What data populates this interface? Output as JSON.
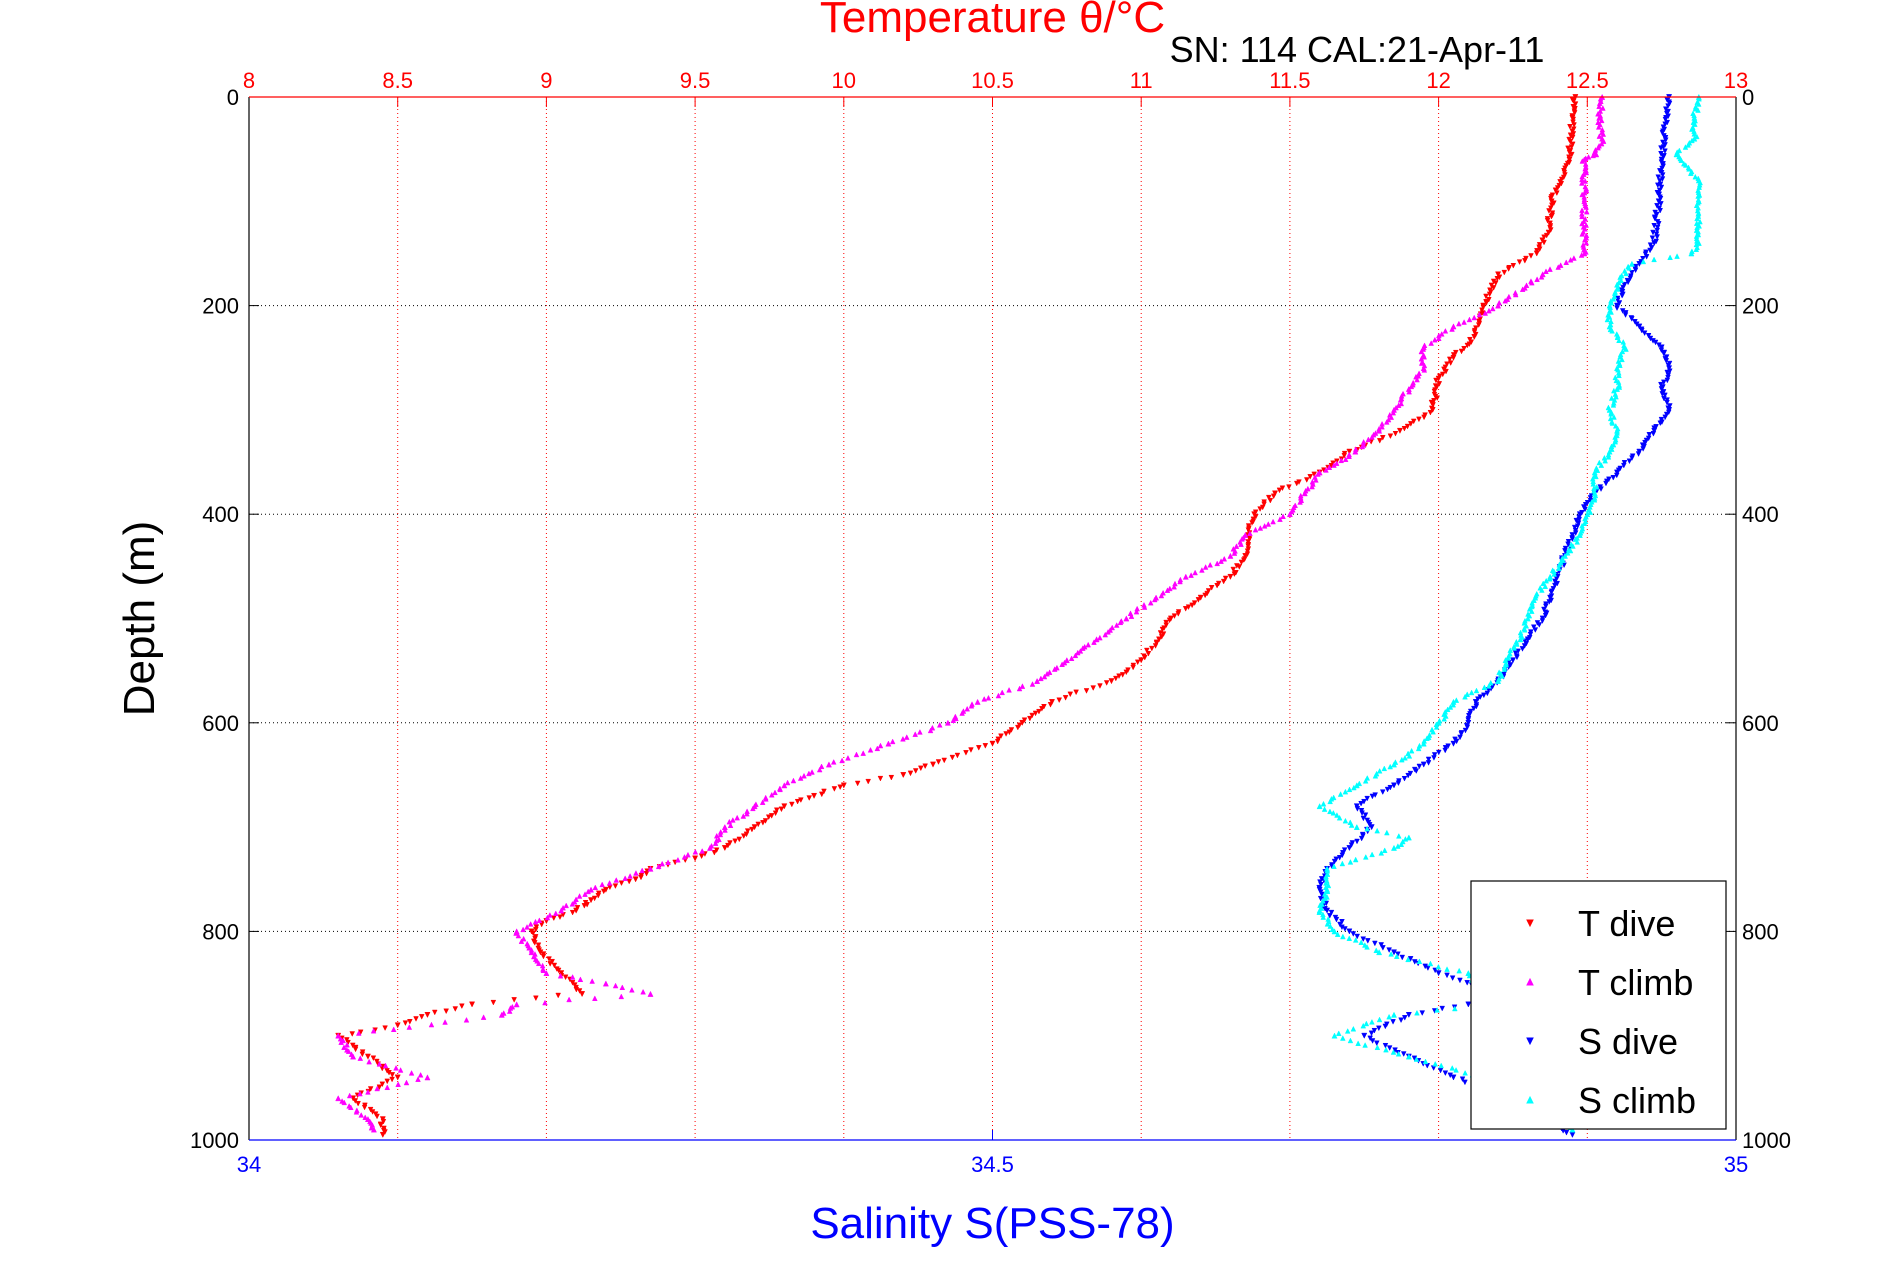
{
  "chart_data": {
    "type": "scatter",
    "title": "Temperature θ/°C",
    "subtitle": "SN: 114  CAL:21-Apr-11",
    "ylabel": "Depth (m)",
    "xlabel": "Salinity S(PSS-78)",
    "y_axis": {
      "lim": [
        0,
        1000
      ],
      "reversed": true,
      "ticks": [
        "0",
        "200",
        "400",
        "600",
        "800",
        "1000"
      ]
    },
    "x_top_axis": {
      "quantity": "Temperature",
      "lim": [
        8,
        13
      ],
      "ticks": [
        "8",
        "8.5",
        "9",
        "9.5",
        "10",
        "10.5",
        "11",
        "11.5",
        "12",
        "12.5",
        "13"
      ],
      "color": "#ff0000",
      "grid": true
    },
    "x_bottom_axis": {
      "quantity": "Salinity",
      "lim": [
        34,
        35
      ],
      "ticks": [
        "34",
        "34.5",
        "35"
      ],
      "color": "#0000ff"
    },
    "y_grid": true,
    "legend": {
      "placement": "bottom-right"
    },
    "series": [
      {
        "name": "T dive",
        "axis": "top",
        "color": "#ff0000",
        "marker": "triangle-down",
        "points": [
          [
            0,
            12.46
          ],
          [
            20,
            12.45
          ],
          [
            60,
            12.44
          ],
          [
            100,
            12.38
          ],
          [
            130,
            12.37
          ],
          [
            150,
            12.33
          ],
          [
            170,
            12.2
          ],
          [
            200,
            12.15
          ],
          [
            230,
            12.12
          ],
          [
            250,
            12.05
          ],
          [
            270,
            12.0
          ],
          [
            300,
            11.98
          ],
          [
            320,
            11.87
          ],
          [
            340,
            11.7
          ],
          [
            360,
            11.6
          ],
          [
            380,
            11.45
          ],
          [
            400,
            11.38
          ],
          [
            420,
            11.36
          ],
          [
            440,
            11.35
          ],
          [
            460,
            11.3
          ],
          [
            480,
            11.2
          ],
          [
            500,
            11.1
          ],
          [
            520,
            11.06
          ],
          [
            540,
            11.0
          ],
          [
            560,
            10.9
          ],
          [
            580,
            10.7
          ],
          [
            600,
            10.6
          ],
          [
            620,
            10.5
          ],
          [
            640,
            10.3
          ],
          [
            650,
            10.2
          ],
          [
            660,
            10.0
          ],
          [
            670,
            9.9
          ],
          [
            680,
            9.8
          ],
          [
            700,
            9.7
          ],
          [
            720,
            9.6
          ],
          [
            730,
            9.5
          ],
          [
            740,
            9.35
          ],
          [
            750,
            9.3
          ],
          [
            760,
            9.2
          ],
          [
            770,
            9.15
          ],
          [
            780,
            9.1
          ],
          [
            790,
            9.0
          ],
          [
            800,
            8.95
          ],
          [
            820,
            8.98
          ],
          [
            840,
            9.05
          ],
          [
            860,
            9.12
          ],
          [
            870,
            8.75
          ],
          [
            880,
            8.6
          ],
          [
            890,
            8.5
          ],
          [
            900,
            8.3
          ],
          [
            920,
            8.4
          ],
          [
            940,
            8.5
          ],
          [
            960,
            8.35
          ],
          [
            980,
            8.45
          ],
          [
            995,
            8.45
          ]
        ]
      },
      {
        "name": "T climb",
        "axis": "top",
        "color": "#ff00ff",
        "marker": "triangle-up",
        "points": [
          [
            0,
            12.55
          ],
          [
            20,
            12.54
          ],
          [
            40,
            12.55
          ],
          [
            55,
            12.53
          ],
          [
            60,
            12.49
          ],
          [
            100,
            12.49
          ],
          [
            150,
            12.49
          ],
          [
            170,
            12.35
          ],
          [
            200,
            12.2
          ],
          [
            220,
            12.05
          ],
          [
            240,
            11.95
          ],
          [
            260,
            11.95
          ],
          [
            280,
            11.9
          ],
          [
            300,
            11.85
          ],
          [
            320,
            11.8
          ],
          [
            340,
            11.72
          ],
          [
            360,
            11.6
          ],
          [
            380,
            11.55
          ],
          [
            400,
            11.5
          ],
          [
            420,
            11.35
          ],
          [
            440,
            11.3
          ],
          [
            460,
            11.15
          ],
          [
            480,
            11.05
          ],
          [
            500,
            10.95
          ],
          [
            520,
            10.85
          ],
          [
            540,
            10.75
          ],
          [
            560,
            10.65
          ],
          [
            580,
            10.45
          ],
          [
            600,
            10.35
          ],
          [
            620,
            10.15
          ],
          [
            640,
            9.95
          ],
          [
            660,
            9.8
          ],
          [
            680,
            9.7
          ],
          [
            700,
            9.6
          ],
          [
            720,
            9.55
          ],
          [
            740,
            9.35
          ],
          [
            760,
            9.15
          ],
          [
            780,
            9.05
          ],
          [
            800,
            8.9
          ],
          [
            820,
            8.95
          ],
          [
            840,
            9.0
          ],
          [
            850,
            9.2
          ],
          [
            860,
            9.35
          ],
          [
            870,
            8.9
          ],
          [
            880,
            8.85
          ],
          [
            900,
            8.3
          ],
          [
            920,
            8.35
          ],
          [
            940,
            8.6
          ],
          [
            960,
            8.3
          ],
          [
            980,
            8.4
          ],
          [
            990,
            8.42
          ]
        ]
      },
      {
        "name": "S dive",
        "axis": "bottom",
        "color": "#0000ff",
        "marker": "triangle-down",
        "points": [
          [
            0,
            34.955
          ],
          [
            20,
            34.953
          ],
          [
            60,
            34.95
          ],
          [
            100,
            34.948
          ],
          [
            140,
            34.945
          ],
          [
            160,
            34.935
          ],
          [
            180,
            34.925
          ],
          [
            200,
            34.92
          ],
          [
            220,
            34.935
          ],
          [
            240,
            34.95
          ],
          [
            260,
            34.955
          ],
          [
            280,
            34.95
          ],
          [
            300,
            34.955
          ],
          [
            320,
            34.945
          ],
          [
            340,
            34.935
          ],
          [
            360,
            34.92
          ],
          [
            380,
            34.905
          ],
          [
            400,
            34.895
          ],
          [
            420,
            34.89
          ],
          [
            440,
            34.885
          ],
          [
            460,
            34.88
          ],
          [
            480,
            34.875
          ],
          [
            500,
            34.87
          ],
          [
            520,
            34.86
          ],
          [
            540,
            34.85
          ],
          [
            560,
            34.84
          ],
          [
            580,
            34.825
          ],
          [
            600,
            34.82
          ],
          [
            620,
            34.81
          ],
          [
            640,
            34.79
          ],
          [
            660,
            34.77
          ],
          [
            680,
            34.745
          ],
          [
            700,
            34.755
          ],
          [
            720,
            34.74
          ],
          [
            740,
            34.725
          ],
          [
            760,
            34.72
          ],
          [
            780,
            34.725
          ],
          [
            800,
            34.74
          ],
          [
            820,
            34.77
          ],
          [
            840,
            34.8
          ],
          [
            860,
            34.84
          ],
          [
            870,
            34.82
          ],
          [
            880,
            34.78
          ],
          [
            900,
            34.75
          ],
          [
            920,
            34.78
          ],
          [
            940,
            34.81
          ],
          [
            960,
            34.85
          ],
          [
            980,
            34.87
          ],
          [
            995,
            34.89
          ]
        ]
      },
      {
        "name": "S climb",
        "axis": "bottom",
        "color": "#00ffff",
        "marker": "triangle-up",
        "points": [
          [
            0,
            34.975
          ],
          [
            20,
            34.972
          ],
          [
            40,
            34.972
          ],
          [
            55,
            34.96
          ],
          [
            80,
            34.975
          ],
          [
            100,
            34.975
          ],
          [
            140,
            34.975
          ],
          [
            150,
            34.97
          ],
          [
            160,
            34.93
          ],
          [
            180,
            34.92
          ],
          [
            200,
            34.915
          ],
          [
            220,
            34.915
          ],
          [
            240,
            34.925
          ],
          [
            260,
            34.92
          ],
          [
            280,
            34.92
          ],
          [
            300,
            34.915
          ],
          [
            320,
            34.92
          ],
          [
            340,
            34.915
          ],
          [
            360,
            34.905
          ],
          [
            380,
            34.905
          ],
          [
            400,
            34.9
          ],
          [
            420,
            34.895
          ],
          [
            440,
            34.885
          ],
          [
            460,
            34.875
          ],
          [
            480,
            34.865
          ],
          [
            500,
            34.86
          ],
          [
            520,
            34.855
          ],
          [
            540,
            34.845
          ],
          [
            560,
            34.84
          ],
          [
            580,
            34.81
          ],
          [
            600,
            34.8
          ],
          [
            620,
            34.79
          ],
          [
            640,
            34.77
          ],
          [
            660,
            34.745
          ],
          [
            680,
            34.72
          ],
          [
            700,
            34.745
          ],
          [
            710,
            34.78
          ],
          [
            720,
            34.77
          ],
          [
            740,
            34.725
          ],
          [
            760,
            34.725
          ],
          [
            780,
            34.72
          ],
          [
            800,
            34.73
          ],
          [
            820,
            34.76
          ],
          [
            840,
            34.82
          ],
          [
            860,
            34.83
          ],
          [
            870,
            34.84
          ],
          [
            880,
            34.77
          ],
          [
            900,
            34.73
          ],
          [
            920,
            34.78
          ],
          [
            940,
            34.83
          ],
          [
            960,
            34.85
          ],
          [
            980,
            34.88
          ],
          [
            990,
            34.89
          ]
        ]
      }
    ]
  }
}
